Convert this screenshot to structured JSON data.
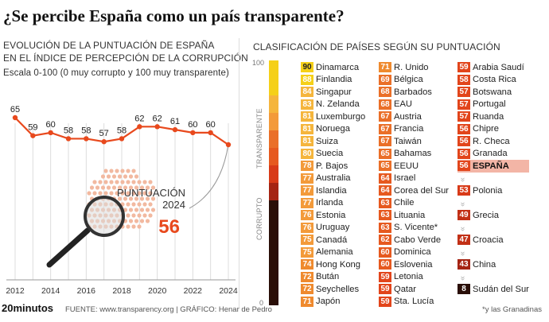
{
  "header": {
    "title": "¿Se percibe España como un país transparente?"
  },
  "left": {
    "subtitle_line1": "EVOLUCIÓN DE LA PUNTUACIÓN DE ESPAÑA",
    "subtitle_line2": "EN EL ÍNDICE DE PERCEPCIÓN DE LA CORRUPCIÓN",
    "scale_note": "Escala 0-100 (0 muy corrupto y 100 muy transparente)",
    "callout_label_1": "PUNTUACIÓN",
    "callout_label_2": "2024",
    "callout_value": "56"
  },
  "right": {
    "subtitle": "CLASIFICACIÓN DE PAÍSES SEGÚN SU PUNTUACIÓN",
    "scale_max": "100",
    "scale_min": "0",
    "axis_top": "TRANSPARENTE",
    "axis_bottom": "CORRUPTO",
    "gap_mark": "»",
    "columns": [
      [
        {
          "score": "90",
          "country": "Dinamarca"
        },
        {
          "score": "88",
          "country": "Finlandia"
        },
        {
          "score": "84",
          "country": "Singapur"
        },
        {
          "score": "83",
          "country": "N. Zelanda"
        },
        {
          "score": "81",
          "country": "Luxemburgo"
        },
        {
          "score": "81",
          "country": "Noruega"
        },
        {
          "score": "81",
          "country": "Suiza"
        },
        {
          "score": "80",
          "country": "Suecia"
        },
        {
          "score": "78",
          "country": "P. Bajos"
        },
        {
          "score": "77",
          "country": "Australia"
        },
        {
          "score": "77",
          "country": "Islandia"
        },
        {
          "score": "77",
          "country": "Irlanda"
        },
        {
          "score": "76",
          "country": "Estonia"
        },
        {
          "score": "76",
          "country": "Uruguay"
        },
        {
          "score": "75",
          "country": "Canadá"
        },
        {
          "score": "75",
          "country": "Alemania"
        },
        {
          "score": "74",
          "country": "Hong Kong"
        },
        {
          "score": "72",
          "country": "Bután"
        },
        {
          "score": "72",
          "country": "Seychelles"
        },
        {
          "score": "71",
          "country": "Japón"
        }
      ],
      [
        {
          "score": "71",
          "country": "R. Unido"
        },
        {
          "score": "69",
          "country": "Bélgica"
        },
        {
          "score": "68",
          "country": "Barbados"
        },
        {
          "score": "68",
          "country": "EAU"
        },
        {
          "score": "67",
          "country": "Austria"
        },
        {
          "score": "67",
          "country": "Francia"
        },
        {
          "score": "67",
          "country": "Taiwán"
        },
        {
          "score": "65",
          "country": "Bahamas"
        },
        {
          "score": "65",
          "country": "EEUU"
        },
        {
          "score": "64",
          "country": "Israel"
        },
        {
          "score": "64",
          "country": "Corea del Sur"
        },
        {
          "score": "63",
          "country": "Chile"
        },
        {
          "score": "63",
          "country": "Lituania"
        },
        {
          "score": "63",
          "country": "S. Vicente*"
        },
        {
          "score": "62",
          "country": "Cabo Verde"
        },
        {
          "score": "60",
          "country": "Dominica"
        },
        {
          "score": "60",
          "country": "Eslovenia"
        },
        {
          "score": "59",
          "country": "Letonia"
        },
        {
          "score": "59",
          "country": "Qatar"
        },
        {
          "score": "59",
          "country": "Sta. Lucía"
        }
      ],
      [
        {
          "score": "59",
          "country": "Arabia Saudí"
        },
        {
          "score": "58",
          "country": "Costa Rica"
        },
        {
          "score": "57",
          "country": "Botswana"
        },
        {
          "score": "57",
          "country": "Portugal"
        },
        {
          "score": "57",
          "country": "Ruanda"
        },
        {
          "score": "56",
          "country": "Chipre"
        },
        {
          "score": "56",
          "country": "R. Checa"
        },
        {
          "score": "56",
          "country": "Granada"
        },
        {
          "score": "56",
          "country": "ESPAÑA",
          "highlight": true
        },
        {
          "gap": true
        },
        {
          "score": "53",
          "country": "Polonia"
        },
        {
          "gap": true
        },
        {
          "score": "49",
          "country": "Grecia"
        },
        {
          "gap": true
        },
        {
          "score": "47",
          "country": "Croacia"
        },
        {
          "gap": true
        },
        {
          "score": "43",
          "country": "China"
        },
        {
          "gap": true
        },
        {
          "score": "8",
          "country": "Sudán del Sur"
        }
      ]
    ]
  },
  "footer": {
    "logo": "20minutos",
    "source": "FUENTE: www.transparency.org  |  GRÁFICO: Henar de Pedro",
    "footnote": "*y las Granadinas"
  },
  "chart_data": {
    "type": "line",
    "title": "Evolución de la puntuación de España en el Índice de Percepción de la Corrupción",
    "x": [
      2012,
      2013,
      2014,
      2015,
      2016,
      2017,
      2018,
      2019,
      2020,
      2021,
      2022,
      2023,
      2024
    ],
    "values": [
      65,
      59,
      60,
      58,
      58,
      57,
      58,
      62,
      62,
      61,
      60,
      60,
      56
    ],
    "point_labels": [
      "65",
      "59",
      "60",
      "58",
      "58",
      "57",
      "58",
      "62",
      "62",
      "61",
      "60",
      "60",
      ""
    ],
    "tick_labels": [
      "2012",
      "2014",
      "2016",
      "2018",
      "2020",
      "2022",
      "2024"
    ],
    "tick_values": [
      2012,
      2014,
      2016,
      2018,
      2020,
      2022,
      2024
    ],
    "xlabel": "",
    "ylabel": "",
    "ylim": [
      50,
      70
    ],
    "colors": {
      "line": "#e8491d",
      "grid": "#dddddd"
    }
  },
  "colors": {
    "accent": "#e8491d",
    "highlight_bg": "#f3b5a6"
  }
}
